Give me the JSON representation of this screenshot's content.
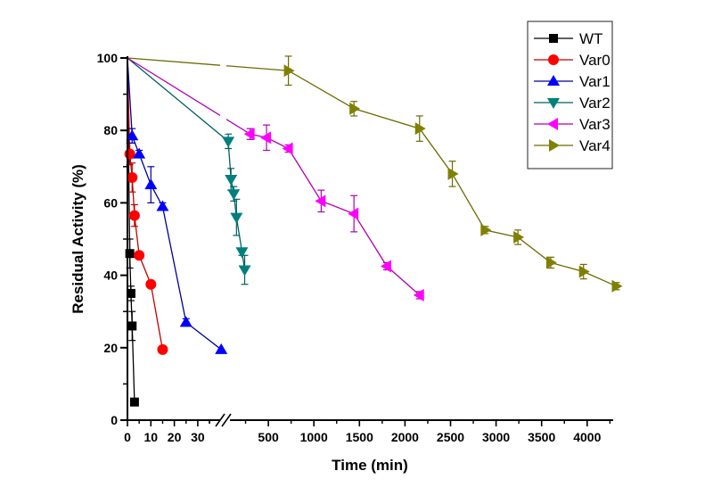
{
  "chart_data": {
    "type": "line",
    "title": "",
    "xlabel": "Time (min)",
    "ylabel": "Residual Activity (%)",
    "ylim": [
      0,
      100
    ],
    "yticks": [
      0,
      20,
      40,
      60,
      80,
      100
    ],
    "x_axis_break": {
      "segment1": {
        "range": [
          0,
          40
        ],
        "ticks": [
          0,
          10,
          20,
          30
        ]
      },
      "segment2": {
        "range": [
          0,
          4300
        ],
        "ticks": [
          500,
          1000,
          1500,
          2000,
          2500,
          3000,
          3500,
          4000
        ]
      }
    },
    "grid": false,
    "legend_position": "top-right",
    "series": [
      {
        "name": "WT",
        "color": "#000000",
        "marker": "square",
        "x": [
          0,
          1,
          1.5,
          2,
          3
        ],
        "y": [
          100,
          46,
          35,
          26,
          5
        ],
        "err": [
          0,
          4,
          2,
          4,
          0
        ]
      },
      {
        "name": "Var0",
        "color": "#ff0000",
        "line_color": "#c00000",
        "marker": "circle",
        "x": [
          0,
          1,
          2,
          3,
          5,
          10,
          15
        ],
        "y": [
          100,
          73.5,
          67,
          56.5,
          45.5,
          37.5,
          19.5
        ],
        "err": [
          0,
          3,
          4,
          3,
          0,
          0,
          0
        ]
      },
      {
        "name": "Var1",
        "color": "#0000ff",
        "line_color": "#000099",
        "marker": "triangle-up",
        "x": [
          0,
          2,
          5,
          10,
          15,
          25,
          40
        ],
        "y": [
          100,
          78.5,
          73.5,
          65,
          59,
          27,
          19.5
        ],
        "err": [
          0,
          2,
          1,
          5,
          1,
          1,
          0
        ]
      },
      {
        "name": "Var2",
        "color": "#007f7f",
        "line_color": "#006060",
        "marker": "triangle-down",
        "x": [
          0,
          60,
          90,
          120,
          150,
          210,
          240
        ],
        "y": [
          100,
          77,
          66.5,
          62.5,
          56,
          46.5,
          41.5
        ],
        "err": [
          0,
          2,
          3,
          2,
          5,
          1,
          4
        ]
      },
      {
        "name": "Var3",
        "color": "#ff00ff",
        "line_color": "#b000b0",
        "marker": "triangle-left",
        "x": [
          0,
          300,
          480,
          720,
          1080,
          1440,
          1800,
          2160
        ],
        "y": [
          100,
          79,
          78,
          75,
          60.5,
          57,
          42.5,
          34.5
        ],
        "err": [
          0,
          1.5,
          3.5,
          1,
          3,
          5,
          1,
          1
        ]
      },
      {
        "name": "Var4",
        "color": "#808000",
        "line_color": "#6b6b00",
        "marker": "triangle-right",
        "x": [
          0,
          720,
          1440,
          2160,
          2520,
          2880,
          3240,
          3600,
          3960,
          4320
        ],
        "y": [
          100,
          96.5,
          86,
          80.5,
          68,
          52.5,
          50.5,
          43.5,
          41,
          37
        ],
        "err": [
          0,
          4,
          2,
          3.5,
          3.5,
          1,
          2,
          1.5,
          2,
          1
        ]
      }
    ]
  }
}
